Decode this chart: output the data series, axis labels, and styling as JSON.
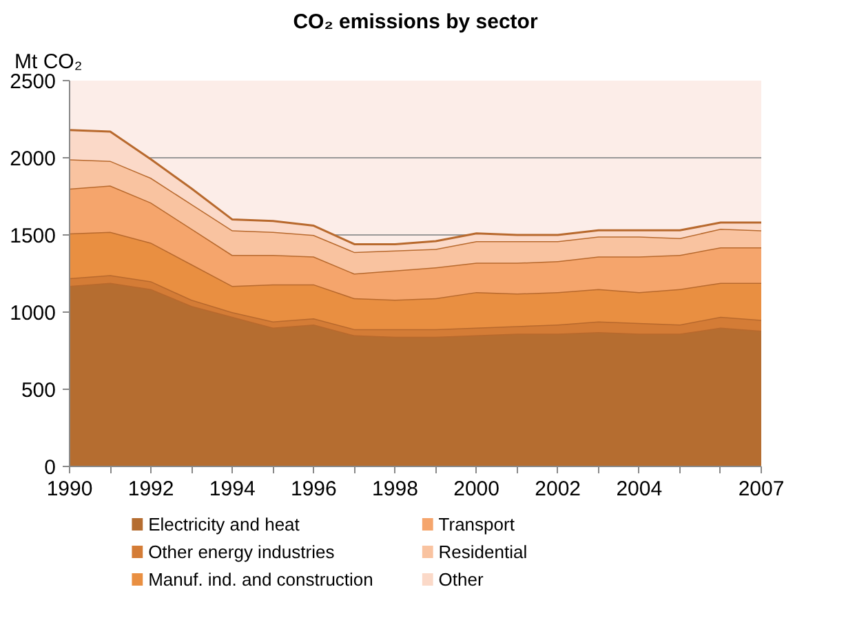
{
  "chart_data": {
    "type": "area",
    "stacked": true,
    "title": "CO₂ emissions by sector",
    "ylabel": "Mt CO₂",
    "x": [
      1990,
      1991,
      1992,
      1993,
      1994,
      1995,
      1996,
      1997,
      1998,
      1999,
      2000,
      2001,
      2002,
      2003,
      2004,
      2005,
      2006,
      2007
    ],
    "series": [
      {
        "name": "Electricity and heat",
        "color": "#b56d30",
        "values": [
          1170,
          1190,
          1150,
          1040,
          970,
          900,
          920,
          850,
          840,
          840,
          850,
          860,
          860,
          870,
          860,
          860,
          900,
          880
        ]
      },
      {
        "name": "Other energy industries",
        "color": "#d47c36",
        "values": [
          50,
          50,
          50,
          40,
          30,
          40,
          40,
          40,
          50,
          50,
          50,
          50,
          60,
          70,
          70,
          60,
          70,
          70
        ]
      },
      {
        "name": "Manuf. ind. and construction",
        "color": "#e98f41",
        "values": [
          290,
          280,
          250,
          230,
          170,
          240,
          220,
          200,
          190,
          200,
          230,
          210,
          210,
          210,
          200,
          230,
          220,
          240
        ]
      },
      {
        "name": "Transport",
        "color": "#f5a56c",
        "values": [
          290,
          300,
          260,
          230,
          200,
          190,
          180,
          160,
          190,
          200,
          190,
          200,
          200,
          210,
          230,
          220,
          230,
          230
        ]
      },
      {
        "name": "Residential",
        "color": "#f9c3a0",
        "values": [
          190,
          160,
          160,
          160,
          160,
          150,
          140,
          140,
          130,
          120,
          140,
          140,
          130,
          130,
          130,
          110,
          120,
          110
        ]
      },
      {
        "name": "Other",
        "color": "#fbd9c8",
        "values": [
          190,
          190,
          120,
          100,
          70,
          70,
          60,
          50,
          40,
          50,
          50,
          40,
          40,
          40,
          40,
          50,
          40,
          50
        ]
      }
    ],
    "xlim": [
      1990,
      2007
    ],
    "xticks": [
      1990,
      {
        "value": 1991,
        "label": null
      },
      1992,
      {
        "value": 1993,
        "label": null
      },
      1994,
      {
        "value": 1995,
        "label": null
      },
      1996,
      {
        "value": 1997,
        "label": null
      },
      1998,
      {
        "value": 1999,
        "label": null
      },
      2000,
      {
        "value": 2001,
        "label": null
      },
      2002,
      {
        "value": 2003,
        "label": null
      },
      2004,
      {
        "value": 2005,
        "label": null
      },
      {
        "value": 2006,
        "label": null
      },
      2007
    ],
    "ylim": [
      0,
      2500
    ],
    "yticks": [
      0,
      500,
      1000,
      1500,
      2000,
      2500
    ],
    "grid": "y",
    "legend": "bottom"
  }
}
